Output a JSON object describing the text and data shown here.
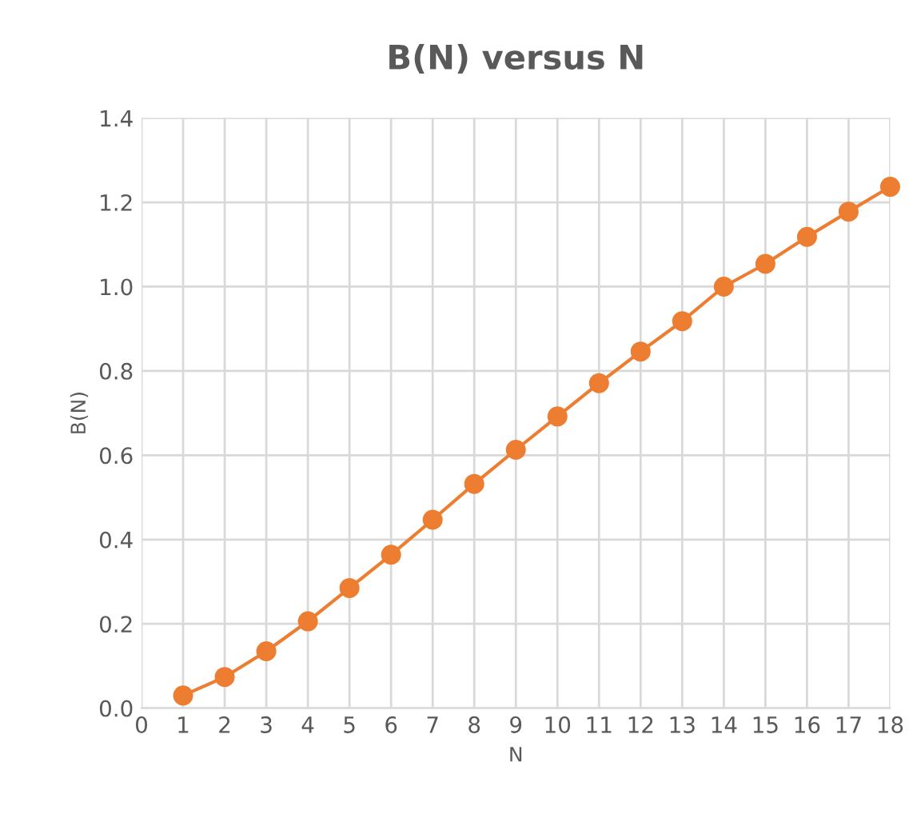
{
  "chart_data": {
    "type": "line",
    "title": "B(N) versus N",
    "xlabel": "N",
    "ylabel": "B(N)",
    "x": [
      1,
      2,
      3,
      4,
      5,
      6,
      7,
      8,
      9,
      10,
      11,
      12,
      13,
      14,
      15,
      16,
      17,
      18
    ],
    "series": [
      {
        "color": "#ed7d31",
        "values": [
          0.03,
          0.074,
          0.135,
          0.206,
          0.285,
          0.364,
          0.447,
          0.532,
          0.613,
          0.692,
          0.771,
          0.846,
          0.918,
          1.0,
          1.054,
          1.118,
          1.178,
          1.237
        ]
      }
    ],
    "xlim": [
      0,
      18
    ],
    "xticks": [
      0,
      1,
      2,
      3,
      4,
      5,
      6,
      7,
      8,
      9,
      10,
      11,
      12,
      13,
      14,
      15,
      16,
      17,
      18
    ],
    "ylim": [
      0,
      1.4
    ],
    "yticks": [
      {
        "value": 0,
        "label": "0.0"
      },
      {
        "value": 0.2,
        "label": "0.2"
      },
      {
        "value": 0.4,
        "label": "0.4"
      },
      {
        "value": 0.6,
        "label": "0.6"
      },
      {
        "value": 0.8,
        "label": "0.8"
      },
      {
        "value": 1.0,
        "label": "1.0"
      },
      {
        "value": 1.2,
        "label": "1.2"
      },
      {
        "value": 1.4,
        "label": "1.4"
      }
    ],
    "grid": true,
    "marker": "circle",
    "line_style": "solid",
    "legend": false
  }
}
